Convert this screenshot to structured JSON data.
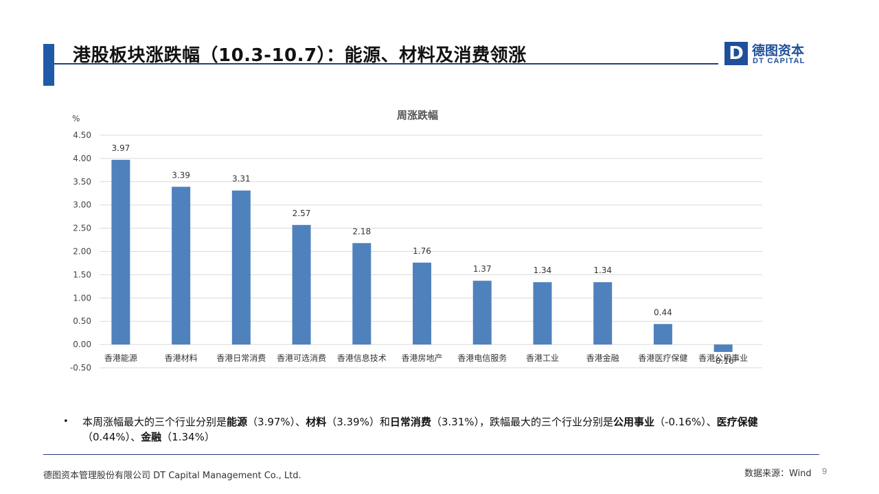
{
  "header": {
    "title": "港股板块涨跌幅（10.3-10.7）：能源、材料及消费领涨"
  },
  "logo": {
    "mark": "D",
    "cn": "德图资本",
    "en": "DT CAPITAL"
  },
  "chart_data": {
    "type": "bar",
    "title": "周涨跌幅",
    "ylabel": "%",
    "xlabel": "",
    "ylim": [
      -0.5,
      4.5
    ],
    "yticks": [
      "-0.50",
      "0.00",
      "0.50",
      "1.00",
      "1.50",
      "2.00",
      "2.50",
      "3.00",
      "3.50",
      "4.00",
      "4.50"
    ],
    "grid": true,
    "legend": "none",
    "bar_color": "#4f81bd",
    "categories": [
      "香港能源",
      "香港材料",
      "香港日常消费",
      "香港可选消费",
      "香港信息技术",
      "香港房地产",
      "香港电信服务",
      "香港工业",
      "香港金融",
      "香港医疗保健",
      "香港公用事业"
    ],
    "values": [
      3.97,
      3.39,
      3.31,
      2.57,
      2.18,
      1.76,
      1.37,
      1.34,
      1.34,
      0.44,
      -0.16
    ],
    "value_labels": [
      "3.97",
      "3.39",
      "3.31",
      "2.57",
      "2.18",
      "1.76",
      "1.37",
      "1.34",
      "1.34",
      "0.44",
      "-0.16"
    ]
  },
  "summary": {
    "bullet": "•",
    "p1": "本周涨幅最大的三个行业分别是",
    "b1": "能源",
    "p2": "（3.97%）、",
    "b2": "材料",
    "p3": "（3.39%）和",
    "b3": "日常消费",
    "p4": "（3.31%），跌幅最大的三个行业分别是",
    "b4": "公用事业",
    "p5": "（-0.16%）、",
    "b5": "医疗保健",
    "p6": "（0.44%）、",
    "b6": "金融",
    "p7": "（1.34%）"
  },
  "footer": {
    "company": "德图资本管理股份有限公司  DT Capital  Management  Co., Ltd.",
    "source": "数据来源：Wind",
    "page": "9"
  }
}
